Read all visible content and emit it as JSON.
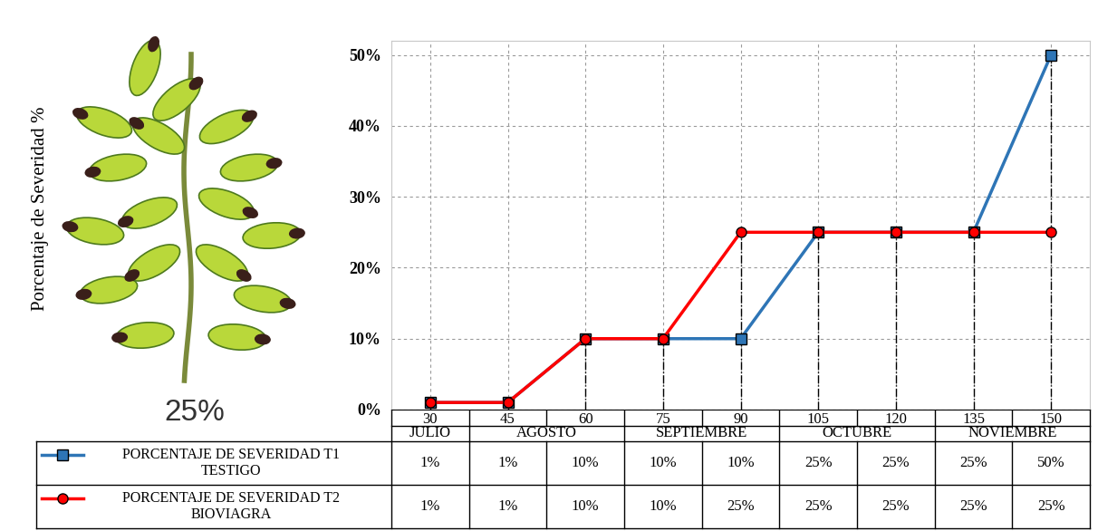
{
  "chart_data": {
    "type": "line",
    "y_label": "Porcentaje de Severidad %",
    "image_caption": "25%",
    "categories": [
      "30",
      "45",
      "60",
      "75",
      "90",
      "105",
      "120",
      "135",
      "150"
    ],
    "months": [
      "JULIO",
      "AGOSTO",
      "AGOSTO",
      "SEPTIEMBRE",
      "SEPTIEMBRE",
      "OCTUBRE",
      "OCTUBRE",
      "NOVIEMBRE",
      "NOVIEMBRE"
    ],
    "ylim": [
      0,
      52
    ],
    "yticks": [
      {
        "value": 0,
        "label": "0%"
      },
      {
        "value": 10,
        "label": "10%"
      },
      {
        "value": 20,
        "label": "20%"
      },
      {
        "value": 30,
        "label": "30%"
      },
      {
        "value": 40,
        "label": "40%"
      },
      {
        "value": 50,
        "label": "50%"
      }
    ],
    "grid": true,
    "series": [
      {
        "name": "PORCENTAJE DE SEVERIDAD T1\nTESTIGO",
        "color": "#2e75b6",
        "marker": "square",
        "line_style": "solid",
        "values": [
          1,
          1,
          10,
          10,
          10,
          25,
          25,
          25,
          50
        ],
        "value_labels": [
          "1%",
          "1%",
          "10%",
          "10%",
          "10%",
          "25%",
          "25%",
          "25%",
          "50%"
        ]
      },
      {
        "name": "PORCENTAJE DE SEVERIDAD T2\nBIOVIAGRA",
        "color": "#ff0000",
        "marker": "circle",
        "line_style": "solid",
        "values": [
          1,
          1,
          10,
          10,
          25,
          25,
          25,
          25,
          25
        ],
        "value_labels": [
          "1%",
          "1%",
          "10%",
          "10%",
          "25%",
          "25%",
          "25%",
          "25%",
          "25%"
        ]
      }
    ]
  }
}
